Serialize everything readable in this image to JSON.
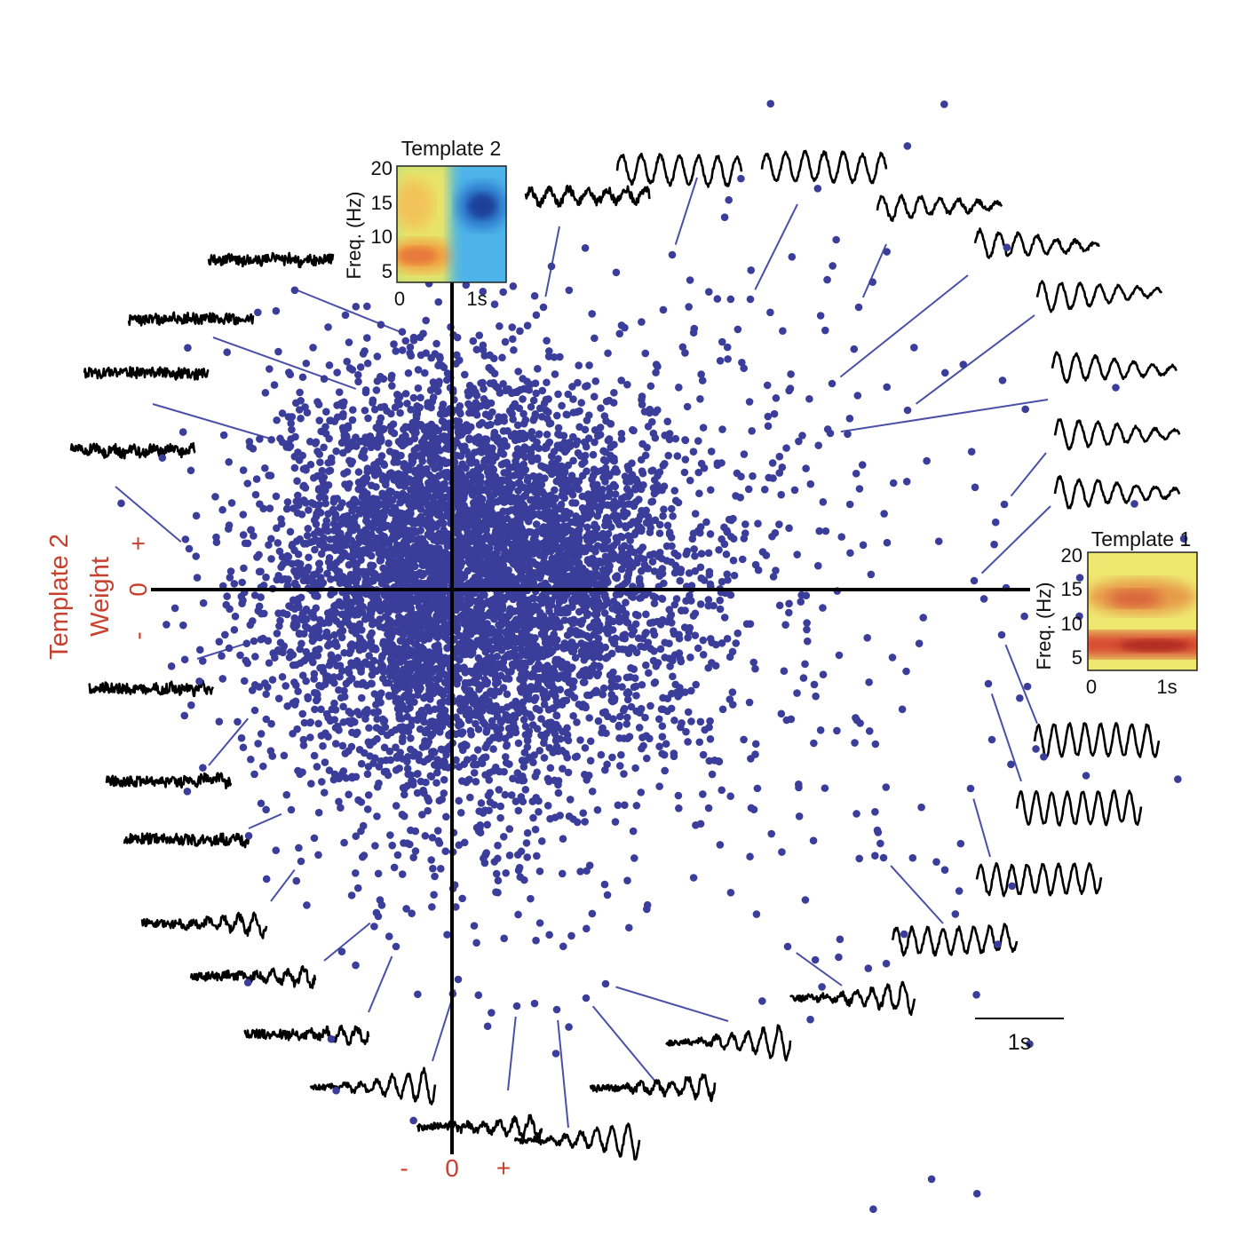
{
  "chart_data": {
    "type": "scatter",
    "title": "",
    "xlabel": "",
    "ylabel_lines": [
      "Template 2",
      "Weight"
    ],
    "x_tick_labels": [
      "-",
      "0",
      "+"
    ],
    "y_tick_labels": [
      "+",
      "0",
      "-"
    ],
    "grid": false,
    "point_color": "#3a3d99",
    "axis_color": "#000000",
    "label_color": "#c8412f",
    "cluster": {
      "description_note": "",
      "center": [
        0.1,
        0.2
      ],
      "spread": [
        1.1,
        1.1
      ],
      "tail_direction": "right"
    },
    "outlier_points": [
      [
        -0.43,
        2.84
      ],
      [
        -0.97,
        2.22
      ],
      [
        -1.91,
        1.66
      ],
      [
        -2.96,
        0.46
      ],
      [
        -2.23,
        -0.58
      ],
      [
        -2.22,
        -1.36
      ],
      [
        -1.81,
        -2.48
      ],
      [
        -1.7,
        -3.06
      ],
      [
        -0.83,
        -3.68
      ],
      [
        -0.63,
        -4.02
      ],
      [
        0.07,
        -4.39
      ],
      [
        0.73,
        -4.69
      ],
      [
        1.18,
        -4.73
      ],
      [
        1.51,
        -4.6
      ],
      [
        1.73,
        -4.44
      ],
      [
        3.78,
        -4.02
      ],
      [
        4.86,
        -3.02
      ],
      [
        5.84,
        -2.24
      ],
      [
        6.08,
        -1.69
      ],
      [
        6.04,
        -1.06
      ],
      [
        6.19,
        -0.51
      ],
      [
        6.24,
        0.02
      ],
      [
        5.88,
        0.1
      ],
      [
        6.22,
        0.96
      ],
      [
        5.13,
        2.02
      ],
      [
        4.26,
        1.76
      ],
      [
        4.28,
        2.32
      ],
      [
        4.58,
        3.18
      ],
      [
        3.36,
        3.27
      ],
      [
        2.48,
        3.77
      ],
      [
        1.03,
        3.18
      ]
    ],
    "insets": [
      {
        "title": "Template 2",
        "ylabel": "Freq. (Hz)",
        "y_ticks": [
          "20",
          "15",
          "10",
          "5"
        ],
        "x_ticks": [
          "0",
          "1s"
        ],
        "colormap": "jet"
      },
      {
        "title": "Template 1",
        "ylabel": "Freq. (Hz)",
        "y_ticks": [
          "20",
          "15",
          "10",
          "5"
        ],
        "x_ticks": [
          "0",
          "1s"
        ],
        "colormap": "jet"
      }
    ],
    "scale_bar_label": "1s"
  }
}
